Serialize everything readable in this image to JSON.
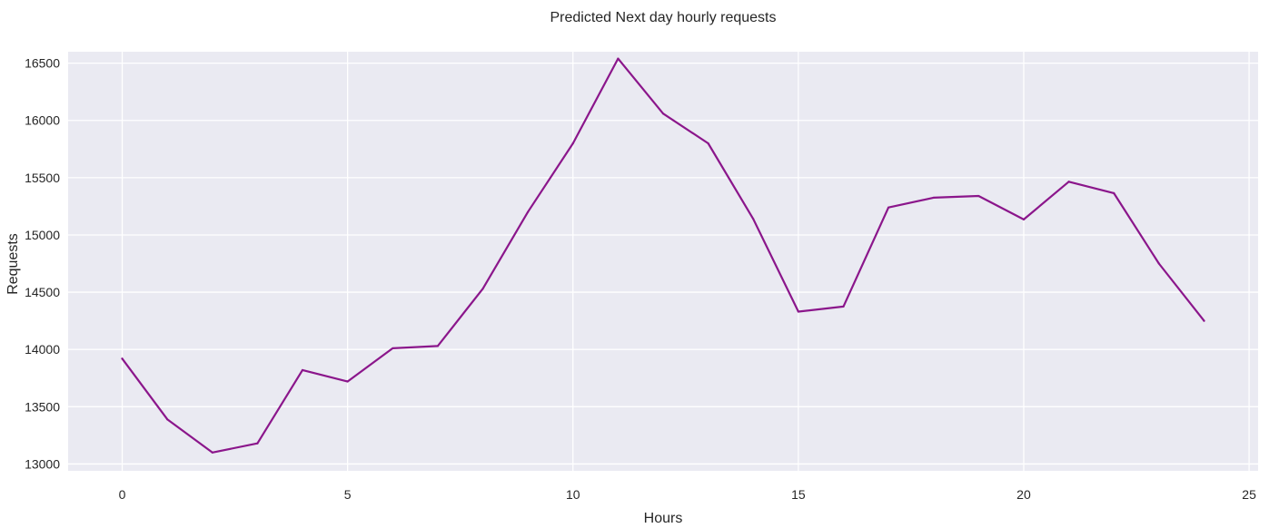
{
  "chart_data": {
    "type": "line",
    "title": "Predicted Next day hourly requests",
    "xlabel": "Hours",
    "ylabel": "Requests",
    "xlim": [
      -1.2,
      25.2
    ],
    "ylim": [
      12940,
      16600
    ],
    "x_ticks": [
      0,
      5,
      10,
      15,
      20,
      25
    ],
    "y_ticks": [
      13000,
      13500,
      14000,
      14500,
      15000,
      15500,
      16000,
      16500
    ],
    "x_tick_labels": [
      "0",
      "5",
      "10",
      "15",
      "20",
      "25"
    ],
    "y_tick_labels": [
      "13000",
      "13500",
      "14000",
      "14500",
      "15000",
      "15500",
      "16000",
      "16500"
    ],
    "grid": true,
    "colors": {
      "background": "#eaeaf2",
      "grid": "#ffffff",
      "line": "#8b168b"
    },
    "series": [
      {
        "x": [
          0,
          1,
          2,
          3,
          4,
          5,
          6,
          7,
          8,
          9,
          10,
          11,
          12,
          13,
          14,
          15,
          16,
          17,
          18,
          19,
          20,
          21,
          22,
          23,
          24
        ],
        "values": [
          13920,
          13390,
          13100,
          13180,
          13820,
          13720,
          14010,
          14030,
          14530,
          15200,
          15800,
          16540,
          16060,
          15800,
          15140,
          14330,
          14375,
          15240,
          15325,
          15340,
          15135,
          15465,
          15365,
          14750,
          14250
        ]
      }
    ]
  }
}
